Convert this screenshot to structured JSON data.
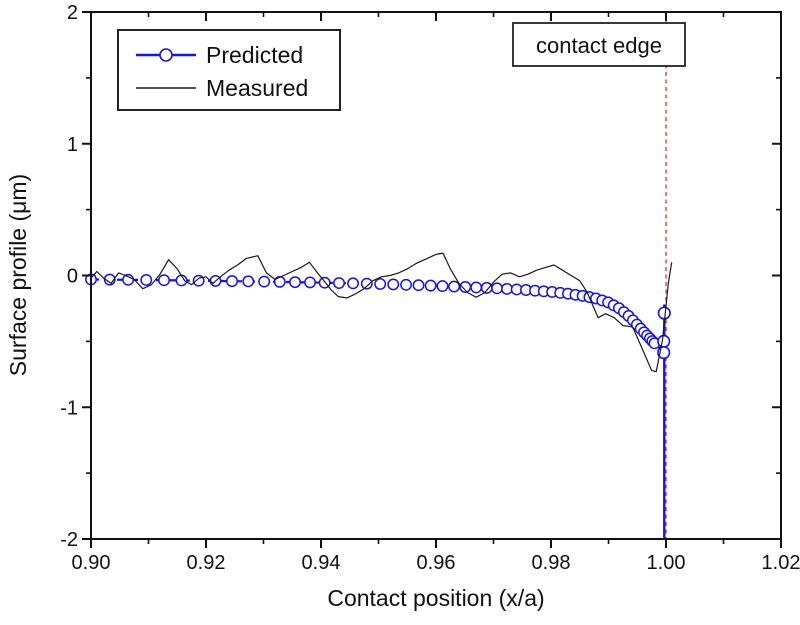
{
  "figure": {
    "background": "#ffffff",
    "border_color": "#111111"
  },
  "colors": {
    "predicted": "#1414ee",
    "measured": "#1a1a1a",
    "contact_edge_line": "#ff2222",
    "box_fill": "#ffffff",
    "box_border": "#222222"
  },
  "chart_data": {
    "type": "line",
    "title": "",
    "xlabel": "Contact position (x/a)",
    "ylabel": "Surface profile (μm)",
    "xlim": [
      0.9,
      1.02
    ],
    "ylim": [
      -2,
      2
    ],
    "grid": false,
    "legend_position": "top-left",
    "x_major_ticks": [
      0.9,
      0.92,
      0.94,
      0.96,
      0.98,
      1.0,
      1.02
    ],
    "x_tick_labels": [
      "0.90",
      "0.92",
      "0.94",
      "0.96",
      "0.98",
      "1.00",
      "1.02"
    ],
    "x_minor_ticks": [
      0.91,
      0.93,
      0.95,
      0.97,
      0.99,
      1.01
    ],
    "y_major_ticks": [
      -2,
      -1,
      0,
      1,
      2
    ],
    "y_tick_labels": [
      "-2",
      "-1",
      "0",
      "1",
      "2"
    ],
    "y_minor_ticks": [
      -1.5,
      -0.5,
      0.5,
      1.5
    ],
    "annotation": {
      "text": "contact edge",
      "x": 1.0,
      "line_style": "dashed",
      "line_color": "#ff2222"
    },
    "series": [
      {
        "name": "Predicted",
        "type": "line+markers",
        "color": "#1414ee",
        "line_style": "dashed",
        "marker": "open-circle",
        "marker_layout": {
          "count": 55,
          "x_start": 0.9,
          "x_end": 0.998,
          "edge": 0.9991
        },
        "points": [
          [
            0.9,
            -0.03
          ],
          [
            0.91,
            -0.034
          ],
          [
            0.92,
            -0.04
          ],
          [
            0.93,
            -0.046
          ],
          [
            0.94,
            -0.054
          ],
          [
            0.95,
            -0.064
          ],
          [
            0.96,
            -0.078
          ],
          [
            0.97,
            -0.096
          ],
          [
            0.975,
            -0.108
          ],
          [
            0.98,
            -0.124
          ],
          [
            0.983,
            -0.138
          ],
          [
            0.986,
            -0.158
          ],
          [
            0.988,
            -0.176
          ],
          [
            0.99,
            -0.205
          ],
          [
            0.992,
            -0.252
          ],
          [
            0.9937,
            -0.315
          ],
          [
            0.995,
            -0.375
          ],
          [
            0.9962,
            -0.432
          ],
          [
            0.9972,
            -0.478
          ],
          [
            0.998,
            -0.515
          ],
          [
            0.9985,
            -0.535
          ]
        ],
        "edge_connector": [
          [
            0.9985,
            -0.535
          ],
          [
            0.9996,
            -0.58
          ]
        ],
        "edge_line": {
          "x": 0.9997,
          "y_top": -0.22,
          "y_bottom": -2.0
        },
        "edge_markers": [
          [
            0.9997,
            -0.285
          ],
          [
            0.9996,
            -0.5
          ],
          [
            0.9996,
            -0.585
          ]
        ]
      },
      {
        "name": "Measured",
        "type": "line",
        "color": "#1a1a1a",
        "line_style": "solid",
        "points": [
          [
            0.9,
            -0.02
          ],
          [
            0.901,
            0.03
          ],
          [
            0.9022,
            -0.02
          ],
          [
            0.9035,
            -0.06
          ],
          [
            0.9048,
            0.02
          ],
          [
            0.906,
            0.0
          ],
          [
            0.9075,
            -0.03
          ],
          [
            0.909,
            -0.1
          ],
          [
            0.9105,
            -0.07
          ],
          [
            0.912,
            0.01
          ],
          [
            0.9135,
            0.12
          ],
          [
            0.915,
            0.05
          ],
          [
            0.9163,
            -0.04
          ],
          [
            0.9175,
            -0.07
          ],
          [
            0.9188,
            -0.02
          ],
          [
            0.92,
            -0.01
          ],
          [
            0.9212,
            -0.06
          ],
          [
            0.9225,
            -0.01
          ],
          [
            0.924,
            0.04
          ],
          [
            0.9255,
            0.08
          ],
          [
            0.927,
            0.13
          ],
          [
            0.929,
            0.15
          ],
          [
            0.9305,
            0.02
          ],
          [
            0.932,
            -0.03
          ],
          [
            0.9335,
            0.0
          ],
          [
            0.935,
            0.03
          ],
          [
            0.9365,
            0.06
          ],
          [
            0.938,
            0.1
          ],
          [
            0.9392,
            0.03
          ],
          [
            0.9405,
            -0.04
          ],
          [
            0.9418,
            -0.11
          ],
          [
            0.943,
            -0.16
          ],
          [
            0.9445,
            -0.17
          ],
          [
            0.946,
            -0.14
          ],
          [
            0.9475,
            -0.1
          ],
          [
            0.949,
            -0.04
          ],
          [
            0.9505,
            -0.01
          ],
          [
            0.952,
            0.0
          ],
          [
            0.9535,
            0.02
          ],
          [
            0.955,
            0.05
          ],
          [
            0.9565,
            0.09
          ],
          [
            0.958,
            0.12
          ],
          [
            0.96,
            0.16
          ],
          [
            0.9612,
            0.17
          ],
          [
            0.9625,
            0.05
          ],
          [
            0.964,
            -0.06
          ],
          [
            0.9655,
            -0.13
          ],
          [
            0.967,
            -0.165
          ],
          [
            0.9685,
            -0.13
          ],
          [
            0.97,
            -0.05
          ],
          [
            0.9715,
            0.01
          ],
          [
            0.973,
            0.02
          ],
          [
            0.9745,
            -0.01
          ],
          [
            0.976,
            0.01
          ],
          [
            0.9775,
            0.04
          ],
          [
            0.979,
            0.06
          ],
          [
            0.9805,
            0.08
          ],
          [
            0.982,
            0.04
          ],
          [
            0.9835,
            0.0
          ],
          [
            0.985,
            -0.04
          ],
          [
            0.9862,
            -0.12
          ],
          [
            0.9875,
            -0.25
          ],
          [
            0.9882,
            -0.32
          ],
          [
            0.9895,
            -0.29
          ],
          [
            0.991,
            -0.32
          ],
          [
            0.9925,
            -0.38
          ],
          [
            0.9942,
            -0.39
          ],
          [
            0.9958,
            -0.55
          ],
          [
            0.9975,
            -0.72
          ],
          [
            0.9983,
            -0.73
          ],
          [
            0.9994,
            -0.49
          ],
          [
            1.0004,
            -0.06
          ],
          [
            1.001,
            0.1
          ]
        ]
      }
    ]
  }
}
